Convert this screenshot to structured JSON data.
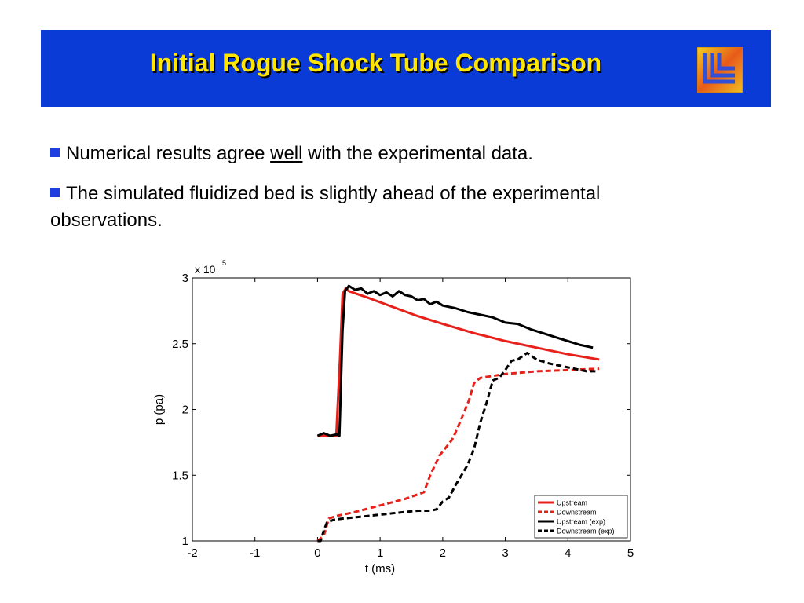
{
  "slide": {
    "title": "Initial Rogue Shock Tube Comparison",
    "bullets": [
      {
        "pre": "Numerical results agree ",
        "em": "well",
        "post": " with the experimental data."
      },
      {
        "pre": "The simulated fluidized bed is slightly ahead of the experimental observations.",
        "em": "",
        "post": ""
      }
    ]
  },
  "chart_data": {
    "type": "line",
    "xlabel": "t (ms)",
    "ylabel": "p (pa)",
    "exponent_base": "x 10",
    "exponent_power": "5",
    "xlim": [
      -2,
      5
    ],
    "ylim": [
      1,
      3
    ],
    "xticks": [
      "-2",
      "-1",
      "0",
      "1",
      "2",
      "3",
      "4",
      "5"
    ],
    "yticks": [
      "1",
      "1.5",
      "2",
      "2.5",
      "3"
    ],
    "grid": false,
    "legend_position": "bottom-right",
    "series": [
      {
        "name": "Upstream",
        "color": "#e8201a",
        "style": "solid",
        "x": [
          0.0,
          0.3,
          0.36,
          0.4,
          0.45,
          0.5,
          0.8,
          1.2,
          1.6,
          2.0,
          2.5,
          3.0,
          3.5,
          4.0,
          4.5
        ],
        "y": [
          1.8,
          1.8,
          2.4,
          2.88,
          2.92,
          2.9,
          2.85,
          2.78,
          2.71,
          2.65,
          2.58,
          2.52,
          2.47,
          2.42,
          2.38
        ]
      },
      {
        "name": "Downstream",
        "color": "#e8201a",
        "style": "dashed",
        "x": [
          0.0,
          0.1,
          0.18,
          0.3,
          0.6,
          1.0,
          1.4,
          1.7,
          1.8,
          1.95,
          2.15,
          2.2,
          2.3,
          2.42,
          2.5,
          2.6,
          3.0,
          3.5,
          4.0,
          4.5
        ],
        "y": [
          1.0,
          1.04,
          1.17,
          1.19,
          1.22,
          1.27,
          1.32,
          1.37,
          1.5,
          1.65,
          1.77,
          1.82,
          1.93,
          2.07,
          2.2,
          2.24,
          2.27,
          2.29,
          2.3,
          2.31
        ]
      },
      {
        "name": "Upstream (exp)",
        "color": "#000000",
        "style": "solid",
        "x": [
          0.0,
          0.1,
          0.2,
          0.3,
          0.35,
          0.4,
          0.44,
          0.5,
          0.6,
          0.7,
          0.8,
          0.9,
          1.0,
          1.1,
          1.2,
          1.3,
          1.4,
          1.5,
          1.6,
          1.7,
          1.8,
          1.9,
          2.0,
          2.2,
          2.4,
          2.6,
          2.8,
          3.0,
          3.2,
          3.4,
          3.6,
          3.8,
          4.0,
          4.2,
          4.4
        ],
        "y": [
          1.8,
          1.82,
          1.8,
          1.81,
          1.8,
          2.6,
          2.9,
          2.94,
          2.91,
          2.92,
          2.88,
          2.9,
          2.87,
          2.89,
          2.86,
          2.9,
          2.87,
          2.86,
          2.83,
          2.84,
          2.8,
          2.82,
          2.79,
          2.77,
          2.74,
          2.72,
          2.7,
          2.66,
          2.65,
          2.61,
          2.58,
          2.55,
          2.52,
          2.49,
          2.47
        ]
      },
      {
        "name": "Downstream (exp)",
        "color": "#000000",
        "style": "dashed",
        "x": [
          0.0,
          0.05,
          0.1,
          0.15,
          0.25,
          0.4,
          0.6,
          0.8,
          1.0,
          1.2,
          1.4,
          1.6,
          1.8,
          1.9,
          2.0,
          2.1,
          2.2,
          2.3,
          2.4,
          2.5,
          2.6,
          2.7,
          2.8,
          2.9,
          3.0,
          3.1,
          3.2,
          3.35,
          3.5,
          3.7,
          3.9,
          4.1,
          4.3,
          4.45
        ],
        "y": [
          1.0,
          1.0,
          1.08,
          1.14,
          1.16,
          1.17,
          1.18,
          1.19,
          1.2,
          1.21,
          1.22,
          1.23,
          1.23,
          1.24,
          1.3,
          1.33,
          1.42,
          1.5,
          1.58,
          1.7,
          1.9,
          2.05,
          2.22,
          2.24,
          2.3,
          2.37,
          2.38,
          2.43,
          2.38,
          2.35,
          2.33,
          2.31,
          2.29,
          2.29
        ]
      }
    ]
  }
}
